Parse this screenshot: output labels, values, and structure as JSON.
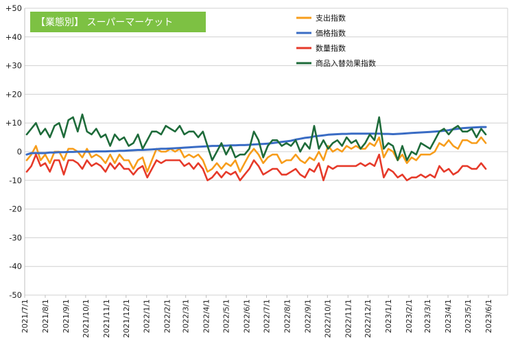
{
  "chart_data": {
    "type": "line",
    "title": "【業態別】 スーパーマーケット",
    "title_bg": "#7dc143",
    "ylim": [
      -50,
      50
    ],
    "yticks": [
      50,
      40,
      30,
      20,
      10,
      0,
      -10,
      -20,
      -30,
      -40,
      -50
    ],
    "ytick_labels": [
      "+50",
      "+40",
      "+30",
      "+20",
      "+10",
      "0",
      "-10",
      "-20",
      "-30",
      "-40",
      "-50"
    ],
    "xlim": [
      "2021-07-01",
      "2023-06-30"
    ],
    "x_tick_labels": [
      "2021/7/1",
      "2021/8/1",
      "2021/9/1",
      "2021/10/1",
      "2021/11/1",
      "2021/12/1",
      "2022/1/1",
      "2022/2/1",
      "2022/3/1",
      "2022/4/1",
      "2022/5/1",
      "2022/6/1",
      "2022/7/1",
      "2022/8/1",
      "2022/9/1",
      "2022/10/1",
      "2022/11/1",
      "2022/12/1",
      "2023/1/1",
      "2023/2/1",
      "2023/3/1",
      "2023/4/1",
      "2023/5/1",
      "2023/6/1"
    ],
    "x_ticks": [
      "2021-07-01",
      "2021-08-01",
      "2021-09-01",
      "2021-10-01",
      "2021-11-01",
      "2021-12-01",
      "2022-01-01",
      "2022-02-01",
      "2022-03-01",
      "2022-04-01",
      "2022-05-01",
      "2022-06-01",
      "2022-07-01",
      "2022-08-01",
      "2022-09-01",
      "2022-10-01",
      "2022-11-01",
      "2022-12-01",
      "2023-01-01",
      "2023-02-01",
      "2023-03-01",
      "2023-04-01",
      "2023-05-01",
      "2023-06-01"
    ],
    "grid": true,
    "legend_position": "top-right",
    "x_interval": "weekly",
    "x_start": "2021-07-04",
    "series": [
      {
        "name": "支出指数",
        "color": "#f79d1b",
        "values": [
          -3,
          -1,
          2,
          -3,
          -1,
          -4,
          0,
          0,
          -3,
          1,
          1,
          0,
          -2,
          1,
          -2,
          -1,
          -2,
          -4,
          -1,
          -4,
          -1,
          -3,
          -3,
          -6,
          -3,
          -2,
          -7,
          -3,
          1,
          0,
          0,
          1,
          0,
          1,
          -2,
          -1,
          -2,
          -1,
          -3,
          -7,
          -6,
          -4,
          -6,
          -4,
          -5,
          -3,
          -7,
          -4,
          -1,
          1,
          -1,
          -4,
          -2,
          -1,
          -1,
          -4,
          -3,
          -3,
          -1,
          -3,
          -4,
          -2,
          -3,
          0,
          -3,
          2,
          0,
          1,
          0,
          2,
          1,
          2,
          1,
          1,
          3,
          2,
          5,
          -2,
          1,
          0,
          -3,
          -1,
          -4,
          -2,
          -3,
          -1,
          -1,
          -1,
          0,
          3,
          2,
          4,
          2,
          1,
          4,
          4,
          3,
          3,
          5,
          3
        ]
      },
      {
        "name": "価格指数",
        "color": "#3a6cc4",
        "values": [
          -1,
          -0.5,
          -0.5,
          -0.5,
          -0.5,
          -0.3,
          -0.3,
          -0.2,
          -0.2,
          -0.1,
          -0.1,
          0,
          0,
          0,
          0,
          0.1,
          0.1,
          0.1,
          0.2,
          0.2,
          0.3,
          0.3,
          0.4,
          0.5,
          0.6,
          0.6,
          0.7,
          0.8,
          0.9,
          1,
          1,
          1.1,
          1.2,
          1.3,
          1.4,
          1.5,
          1.6,
          1.7,
          1.8,
          1.9,
          2,
          2,
          2.1,
          2.1,
          2.2,
          2.2,
          2.3,
          2.3,
          2.4,
          2.5,
          2.6,
          2.7,
          2.8,
          3,
          3.2,
          3.4,
          3.6,
          3.8,
          4.2,
          4.5,
          4.8,
          5,
          5.3,
          5.5,
          5.7,
          5.9,
          6,
          6.1,
          6.2,
          6.2,
          6.3,
          6.3,
          6.3,
          6.3,
          6.3,
          6.3,
          6.3,
          6.2,
          6.2,
          6.1,
          6.2,
          6.3,
          6.4,
          6.5,
          6.6,
          6.7,
          6.8,
          6.9,
          7,
          7.1,
          7.3,
          7.5,
          7.8,
          8,
          8.2,
          8.3,
          8.4,
          8.5,
          8.6,
          8.6
        ]
      },
      {
        "name": "数量指数",
        "color": "#e63a2a",
        "values": [
          -7,
          -5,
          -1,
          -5,
          -4,
          -7,
          -3,
          -3,
          -8,
          -3,
          -3,
          -4,
          -6,
          -3,
          -5,
          -4,
          -5,
          -7,
          -4,
          -6,
          -4,
          -6,
          -6,
          -8,
          -6,
          -5,
          -9,
          -6,
          -3,
          -4,
          -3,
          -3,
          -3,
          -3,
          -5,
          -4,
          -6,
          -4,
          -6,
          -10,
          -9,
          -7,
          -9,
          -7,
          -8,
          -7,
          -10,
          -8,
          -6,
          -3,
          -5,
          -8,
          -7,
          -6,
          -6,
          -8,
          -8,
          -7,
          -6,
          -8,
          -9,
          -6,
          -7,
          -4,
          -10,
          -5,
          -6,
          -5,
          -5,
          -5,
          -5,
          -5,
          -4,
          -5,
          -4,
          -5,
          -1,
          -9,
          -6,
          -7,
          -9,
          -8,
          -10,
          -9,
          -9,
          -8,
          -9,
          -8,
          -9,
          -5,
          -7,
          -6,
          -8,
          -7,
          -5,
          -5,
          -6,
          -6,
          -4,
          -6
        ]
      },
      {
        "name": "商品入替効果指数",
        "color": "#1e6b3a",
        "values": [
          6,
          8,
          10,
          6,
          8,
          5,
          9,
          10,
          5,
          11,
          12,
          7,
          13,
          7,
          6,
          8,
          5,
          6,
          2,
          6,
          4,
          5,
          2,
          3,
          6,
          1,
          4,
          7,
          7,
          6,
          9,
          8,
          7,
          9,
          6,
          7,
          7,
          5,
          7,
          2,
          -3,
          0,
          3,
          -1,
          2,
          -2,
          -1,
          -1,
          1,
          7,
          4,
          -2,
          2,
          4,
          4,
          2,
          3,
          2,
          4,
          0,
          3,
          1,
          9,
          1,
          4,
          1,
          3,
          4,
          2,
          5,
          3,
          4,
          1,
          3,
          6,
          4,
          12,
          1,
          3,
          2,
          -3,
          2,
          -3,
          0,
          -1,
          3,
          2,
          1,
          4,
          7,
          8,
          6,
          8,
          9,
          7,
          7,
          8,
          5,
          8,
          6
        ]
      }
    ]
  }
}
